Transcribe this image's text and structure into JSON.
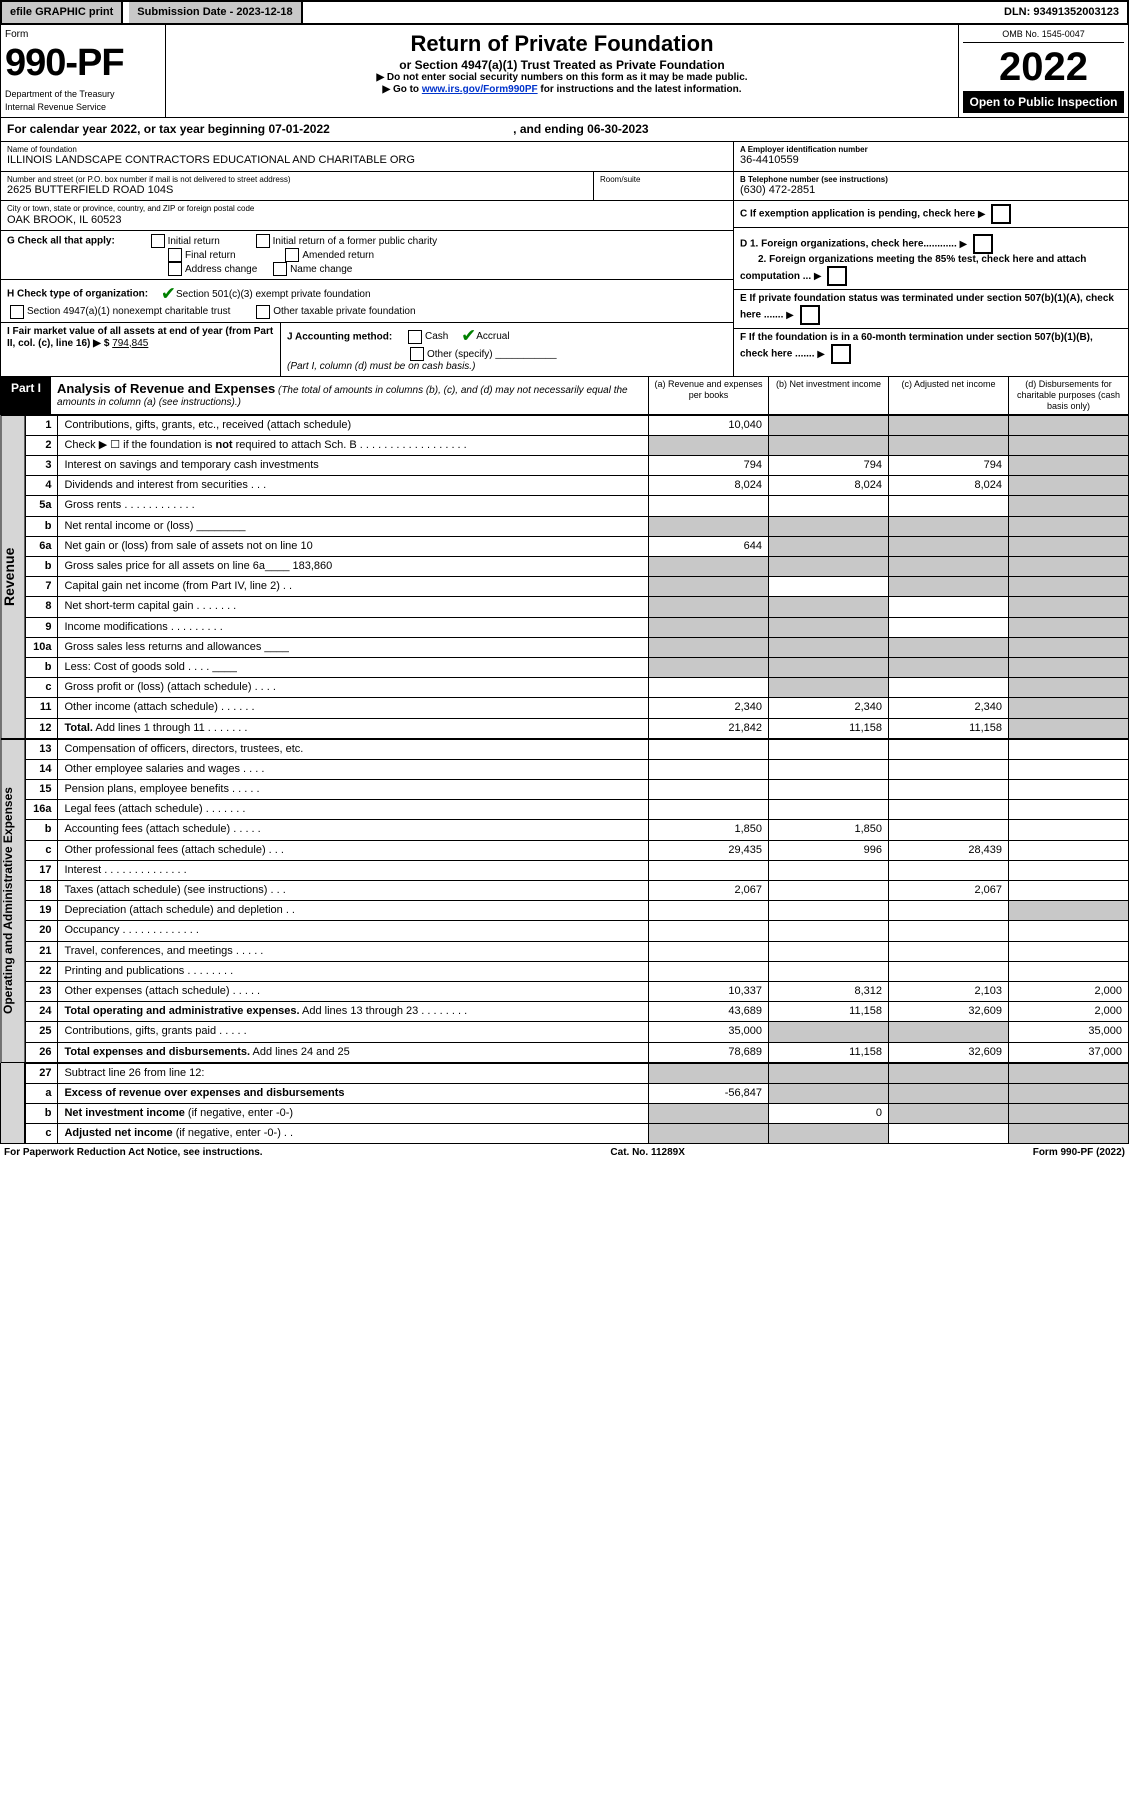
{
  "topbar": {
    "efile": "efile GRAPHIC print",
    "subdate_label": "Submission Date - 2023-12-18",
    "dln": "DLN: 93491352003123"
  },
  "header": {
    "form_label": "Form",
    "form_number": "990-PF",
    "dept": "Department of the Treasury",
    "irs": "Internal Revenue Service",
    "title": "Return of Private Foundation",
    "subtitle": "or Section 4947(a)(1) Trust Treated as Private Foundation",
    "note1": "▶ Do not enter social security numbers on this form as it may be made public.",
    "note2_pre": "▶ Go to ",
    "note2_link": "www.irs.gov/Form990PF",
    "note2_post": " for instructions and the latest information.",
    "omb": "OMB No. 1545-0047",
    "year": "2022",
    "open_public": "Open to Public Inspection"
  },
  "calyear": {
    "text_a": "For calendar year 2022, or tax year beginning 07-01-2022",
    "text_b": ", and ending 06-30-2023"
  },
  "entity": {
    "name_lbl": "Name of foundation",
    "name": "ILLINOIS LANDSCAPE CONTRACTORS EDUCATIONAL AND CHARITABLE ORG",
    "addr_lbl": "Number and street (or P.O. box number if mail is not delivered to street address)",
    "addr": "2625 BUTTERFIELD ROAD 104S",
    "room_lbl": "Room/suite",
    "city_lbl": "City or town, state or province, country, and ZIP or foreign postal code",
    "city": "OAK BROOK, IL  60523",
    "ein_lbl": "A Employer identification number",
    "ein": "36-4410559",
    "phone_lbl": "B Telephone number (see instructions)",
    "phone": "(630) 472-2851",
    "c_lbl": "C If exemption application is pending, check here",
    "d1_lbl": "D 1. Foreign organizations, check here............",
    "d2_lbl": "2. Foreign organizations meeting the 85% test, check here and attach computation ...",
    "e_lbl": "E  If private foundation status was terminated under section 507(b)(1)(A), check here .......",
    "f_lbl": "F  If the foundation is in a 60-month termination under section 507(b)(1)(B), check here ......."
  },
  "g": {
    "label": "G Check all that apply:",
    "o1": "Initial return",
    "o2": "Initial return of a former public charity",
    "o3": "Final return",
    "o4": "Amended return",
    "o5": "Address change",
    "o6": "Name change"
  },
  "h": {
    "label": "H Check type of organization:",
    "o1": "Section 501(c)(3) exempt private foundation",
    "o2": "Section 4947(a)(1) nonexempt charitable trust",
    "o3": "Other taxable private foundation"
  },
  "i": {
    "label": "I Fair market value of all assets at end of year (from Part II, col. (c), line 16)",
    "val": "794,845"
  },
  "j": {
    "label": "J Accounting method:",
    "o1": "Cash",
    "o2": "Accrual",
    "o3": "Other (specify)",
    "note": "(Part I, column (d) must be on cash basis.)"
  },
  "part1": {
    "label": "Part I",
    "title": "Analysis of Revenue and Expenses",
    "desc": " (The total of amounts in columns (b), (c), and (d) may not necessarily equal the amounts in column (a) (see instructions).)",
    "col_a": "(a)   Revenue and expenses per books",
    "col_b": "(b)   Net investment income",
    "col_c": "(c)   Adjusted net income",
    "col_d": "(d)   Disbursements for charitable purposes (cash basis only)"
  },
  "side": {
    "rev": "Revenue",
    "exp": "Operating and Administrative Expenses"
  },
  "rows": [
    {
      "n": "1",
      "label": "Contributions, gifts, grants, etc., received (attach schedule)",
      "a": "10,040",
      "b": "",
      "c": "",
      "d": "",
      "shade_bcd": true
    },
    {
      "n": "2",
      "label": "Check ▶ ☐ if the foundation is <b>not</b> required to attach Sch. B  . . . . . . . . . . . . . . . . . .",
      "a": "",
      "b": "",
      "c": "",
      "d": "",
      "shade_all": true
    },
    {
      "n": "3",
      "label": "Interest on savings and temporary cash investments",
      "a": "794",
      "b": "794",
      "c": "794",
      "d": "",
      "shade_d": true
    },
    {
      "n": "4",
      "label": "Dividends and interest from securities   .  .  .",
      "a": "8,024",
      "b": "8,024",
      "c": "8,024",
      "d": "",
      "shade_d": true
    },
    {
      "n": "5a",
      "label": "Gross rents   .  .  .  .  .  .  .  .  .  .  .  .",
      "a": "",
      "b": "",
      "c": "",
      "d": "",
      "shade_d": true
    },
    {
      "n": "b",
      "label": "Net rental income or (loss) ________",
      "a": "",
      "b": "",
      "c": "",
      "d": "",
      "shade_all": true
    },
    {
      "n": "6a",
      "label": "Net gain or (loss) from sale of assets not on line 10",
      "a": "644",
      "b": "",
      "c": "",
      "d": "",
      "shade_bcd": true
    },
    {
      "n": "b",
      "label": "Gross sales price for all assets on line 6a____  183,860",
      "a": "",
      "b": "",
      "c": "",
      "d": "",
      "shade_all": true
    },
    {
      "n": "7",
      "label": "Capital gain net income (from Part IV, line 2)   .  .",
      "a": "",
      "b": "",
      "c": "",
      "d": "",
      "shade_a": true,
      "shade_cd": true
    },
    {
      "n": "8",
      "label": "Net short-term capital gain  .  .  .  .  .  .  .",
      "a": "",
      "b": "",
      "c": "",
      "d": "",
      "shade_ab": true,
      "shade_d": true
    },
    {
      "n": "9",
      "label": "Income modifications  .  .  .  .  .  .  .  .  .",
      "a": "",
      "b": "",
      "c": "",
      "d": "",
      "shade_ab": true,
      "shade_d": true
    },
    {
      "n": "10a",
      "label": "Gross sales less returns and allowances  ____",
      "a": "",
      "b": "",
      "c": "",
      "d": "",
      "shade_all": true
    },
    {
      "n": "b",
      "label": "Less: Cost of goods sold  .  .  .  .  ____",
      "a": "",
      "b": "",
      "c": "",
      "d": "",
      "shade_all": true
    },
    {
      "n": "c",
      "label": "Gross profit or (loss) (attach schedule)   .  .  .  .",
      "a": "",
      "b": "",
      "c": "",
      "d": "",
      "shade_b": true,
      "shade_d": true
    },
    {
      "n": "11",
      "label": "Other income (attach schedule)   .  .  .  .  .  .",
      "a": "2,340",
      "b": "2,340",
      "c": "2,340",
      "d": "",
      "shade_d": true
    },
    {
      "n": "12",
      "label": "<b>Total.</b> Add lines 1 through 11   .  .  .  .  .  .  .",
      "a": "21,842",
      "b": "11,158",
      "c": "11,158",
      "d": "",
      "shade_d": true
    }
  ],
  "exprows": [
    {
      "n": "13",
      "label": "Compensation of officers, directors, trustees, etc.",
      "a": "",
      "b": "",
      "c": "",
      "d": ""
    },
    {
      "n": "14",
      "label": "Other employee salaries and wages   .  .  .  .",
      "a": "",
      "b": "",
      "c": "",
      "d": ""
    },
    {
      "n": "15",
      "label": "Pension plans, employee benefits  .  .  .  .  .",
      "a": "",
      "b": "",
      "c": "",
      "d": ""
    },
    {
      "n": "16a",
      "label": "Legal fees (attach schedule)  .  .  .  .  .  .  .",
      "a": "",
      "b": "",
      "c": "",
      "d": ""
    },
    {
      "n": "b",
      "label": "Accounting fees (attach schedule)  .  .  .  .  .",
      "a": "1,850",
      "b": "1,850",
      "c": "",
      "d": ""
    },
    {
      "n": "c",
      "label": "Other professional fees (attach schedule)   .  .  .",
      "a": "29,435",
      "b": "996",
      "c": "28,439",
      "d": ""
    },
    {
      "n": "17",
      "label": "Interest  .  .  .  .  .  .  .  .  .  .  .  .  .  .",
      "a": "",
      "b": "",
      "c": "",
      "d": ""
    },
    {
      "n": "18",
      "label": "Taxes (attach schedule) (see instructions)   .  .  .",
      "a": "2,067",
      "b": "",
      "c": "2,067",
      "d": ""
    },
    {
      "n": "19",
      "label": "Depreciation (attach schedule) and depletion   .  .",
      "a": "",
      "b": "",
      "c": "",
      "d": "",
      "shade_d": true
    },
    {
      "n": "20",
      "label": "Occupancy  .  .  .  .  .  .  .  .  .  .  .  .  .",
      "a": "",
      "b": "",
      "c": "",
      "d": ""
    },
    {
      "n": "21",
      "label": "Travel, conferences, and meetings  .  .  .  .  .",
      "a": "",
      "b": "",
      "c": "",
      "d": ""
    },
    {
      "n": "22",
      "label": "Printing and publications  .  .  .  .  .  .  .  .",
      "a": "",
      "b": "",
      "c": "",
      "d": ""
    },
    {
      "n": "23",
      "label": "Other expenses (attach schedule)  .  .  .  .  .",
      "a": "10,337",
      "b": "8,312",
      "c": "2,103",
      "d": "2,000"
    },
    {
      "n": "24",
      "label": "<b>Total operating and administrative expenses.</b> Add lines 13 through 23   .  .  .  .  .  .  .  .",
      "a": "43,689",
      "b": "11,158",
      "c": "32,609",
      "d": "2,000"
    },
    {
      "n": "25",
      "label": "Contributions, gifts, grants paid   .  .  .  .  .",
      "a": "35,000",
      "b": "",
      "c": "",
      "d": "35,000",
      "shade_bc": true
    },
    {
      "n": "26",
      "label": "<b>Total expenses and disbursements.</b> Add lines 24 and 25",
      "a": "78,689",
      "b": "11,158",
      "c": "32,609",
      "d": "37,000"
    }
  ],
  "bottomrows": [
    {
      "n": "27",
      "label": "Subtract line 26 from line 12:",
      "a": "",
      "b": "",
      "c": "",
      "d": "",
      "shade_all": true
    },
    {
      "n": "a",
      "label": "<b>Excess of revenue over expenses and disbursements</b>",
      "a": "-56,847",
      "b": "",
      "c": "",
      "d": "",
      "shade_bcd": true
    },
    {
      "n": "b",
      "label": "<b>Net investment income</b> (if negative, enter -0-)",
      "a": "",
      "b": "0",
      "c": "",
      "d": "",
      "shade_a": true,
      "shade_cd": true
    },
    {
      "n": "c",
      "label": "<b>Adjusted net income</b> (if negative, enter -0-)   .  .",
      "a": "",
      "b": "",
      "c": "",
      "d": "",
      "shade_ab": true,
      "shade_d": true
    }
  ],
  "footer": {
    "left": "For Paperwork Reduction Act Notice, see instructions.",
    "mid": "Cat. No. 11289X",
    "right": "Form 990-PF (2022)"
  },
  "colors": {
    "shade": "#c8c8c8",
    "link": "#0033cc"
  }
}
